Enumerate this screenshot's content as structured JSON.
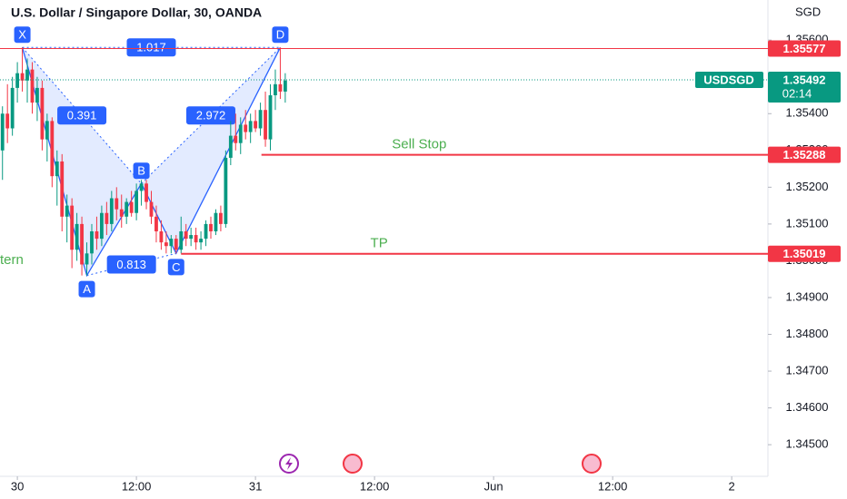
{
  "chart_data": {
    "type": "candlestick",
    "title": "U.S. Dollar / Singapore Dollar, 30, OANDA",
    "currency": "SGD",
    "annotation": "tern",
    "up_color": "#089981",
    "down_color": "#f23645",
    "open": [
      1.353,
      1.354,
      1.3536,
      1.3547,
      1.3551,
      1.3549,
      1.3552,
      1.3543,
      1.3547,
      1.3533,
      1.3538,
      1.3523,
      1.3527,
      1.3512,
      1.3515,
      1.3503,
      1.351,
      1.3499,
      1.3502,
      1.3508,
      1.3506,
      1.3513,
      1.351,
      1.3517,
      1.3514,
      1.3512,
      1.3516,
      1.3513,
      1.3519,
      1.3521,
      1.3516,
      1.3512,
      1.3508,
      1.3505,
      1.3504,
      1.3506,
      1.3503,
      1.3508,
      1.3506,
      1.3507,
      1.3505,
      1.3506,
      1.351,
      1.3508,
      1.3513,
      1.351,
      1.3528,
      1.3534,
      1.3532,
      1.3537,
      1.3535,
      1.3538,
      1.3536,
      1.3541,
      1.3533,
      1.3545,
      1.3548,
      1.3546
    ],
    "high": [
      1.3542,
      1.3548,
      1.355,
      1.3554,
      1.3558,
      1.3555,
      1.3554,
      1.355,
      1.3549,
      1.354,
      1.3539,
      1.353,
      1.3529,
      1.3518,
      1.3517,
      1.3513,
      1.3512,
      1.3505,
      1.351,
      1.3512,
      1.3515,
      1.3516,
      1.3519,
      1.352,
      1.3518,
      1.3517,
      1.3519,
      1.3521,
      1.3522,
      1.3522,
      1.3519,
      1.3515,
      1.3511,
      1.3508,
      1.3507,
      1.3507,
      1.3512,
      1.351,
      1.3509,
      1.3509,
      1.3508,
      1.3511,
      1.3512,
      1.3514,
      1.3515,
      1.353,
      1.3538,
      1.354,
      1.3539,
      1.3541,
      1.354,
      1.3541,
      1.3543,
      1.3546,
      1.3548,
      1.3552,
      1.3558,
      1.3551
    ],
    "low": [
      1.3522,
      1.3532,
      1.3534,
      1.3543,
      1.3546,
      1.3543,
      1.354,
      1.3538,
      1.353,
      1.3527,
      1.352,
      1.3515,
      1.3508,
      1.3505,
      1.3498,
      1.35,
      1.3496,
      1.3496,
      1.3499,
      1.3503,
      1.3504,
      1.3507,
      1.3508,
      1.3511,
      1.3509,
      1.351,
      1.3512,
      1.3511,
      1.3515,
      1.3514,
      1.351,
      1.3505,
      1.3503,
      1.3502,
      1.3502,
      1.3502,
      1.3502,
      1.3504,
      1.3504,
      1.3503,
      1.3503,
      1.3504,
      1.3506,
      1.3507,
      1.3508,
      1.3509,
      1.3526,
      1.353,
      1.3529,
      1.3533,
      1.3532,
      1.3535,
      1.3534,
      1.3531,
      1.353,
      1.3541,
      1.3544,
      1.3543
    ],
    "close": [
      1.354,
      1.3536,
      1.3547,
      1.3551,
      1.3549,
      1.3552,
      1.3543,
      1.3547,
      1.3533,
      1.3538,
      1.3523,
      1.3527,
      1.3512,
      1.3515,
      1.3503,
      1.351,
      1.3499,
      1.3502,
      1.3508,
      1.3506,
      1.3513,
      1.351,
      1.3517,
      1.3514,
      1.3512,
      1.3516,
      1.3513,
      1.3519,
      1.3521,
      1.3516,
      1.3512,
      1.3508,
      1.3505,
      1.3504,
      1.3506,
      1.3503,
      1.3508,
      1.3506,
      1.3507,
      1.3505,
      1.3506,
      1.351,
      1.3508,
      1.3513,
      1.351,
      1.3528,
      1.3534,
      1.3532,
      1.3537,
      1.3535,
      1.3538,
      1.3536,
      1.3541,
      1.3533,
      1.3545,
      1.3548,
      1.3546,
      1.3549
    ],
    "xlim": [
      -0.5,
      154.3
    ],
    "xticks": [
      {
        "value": 3,
        "label": "30"
      },
      {
        "value": 27,
        "label": "12:00"
      },
      {
        "value": 51,
        "label": "31"
      },
      {
        "value": 75,
        "label": "12:00"
      },
      {
        "value": 99,
        "label": "Jun"
      },
      {
        "value": 123,
        "label": "12:00"
      },
      {
        "value": 147,
        "label": "2"
      }
    ],
    "ylim": [
      1.34414,
      1.35709
    ],
    "yticks": [
      {
        "value": 1.356,
        "label": "1.35600"
      },
      {
        "value": 1.355,
        "label": "1.35500"
      },
      {
        "value": 1.354,
        "label": "1.35400"
      },
      {
        "value": 1.353,
        "label": "1.35300"
      },
      {
        "value": 1.352,
        "label": "1.35200"
      },
      {
        "value": 1.351,
        "label": "1.35100"
      },
      {
        "value": 1.35,
        "label": "1.35000"
      },
      {
        "value": 1.349,
        "label": "1.34900"
      },
      {
        "value": 1.348,
        "label": "1.34800"
      },
      {
        "value": 1.347,
        "label": "1.34700"
      },
      {
        "value": 1.346,
        "label": "1.34600"
      },
      {
        "value": 1.345,
        "label": "1.34500"
      }
    ],
    "pattern": {
      "color": "#2962ff",
      "points": [
        {
          "label": "X",
          "index": 4,
          "price": 1.3558
        },
        {
          "label": "A",
          "index": 17,
          "price": 1.3496
        },
        {
          "label": "B",
          "index": 28,
          "price": 1.3521
        },
        {
          "label": "C",
          "index": 35,
          "price": 1.3502
        },
        {
          "label": "D",
          "index": 56,
          "price": 1.3558
        }
      ],
      "ratios": [
        {
          "value": 1.017,
          "from": "X",
          "to": "D"
        },
        {
          "value": 0.391,
          "from": "X",
          "to": "B"
        },
        {
          "value": 0.813,
          "from": "A",
          "to": "C"
        },
        {
          "value": 2.972,
          "from": "B",
          "to": "D"
        }
      ]
    },
    "levels": [
      {
        "price": 1.35577,
        "start": -0.5,
        "color": "#f23645"
      },
      {
        "name": "Sell Stop",
        "price": 1.35288,
        "start": 52.2,
        "color": "#f23645"
      },
      {
        "name": "TP",
        "price": 1.35019,
        "start": 36,
        "color": "#f23645"
      }
    ],
    "last": {
      "symbol": "USDSGD",
      "price": 1.35492,
      "countdown": "02:14",
      "color": "#089981"
    }
  }
}
